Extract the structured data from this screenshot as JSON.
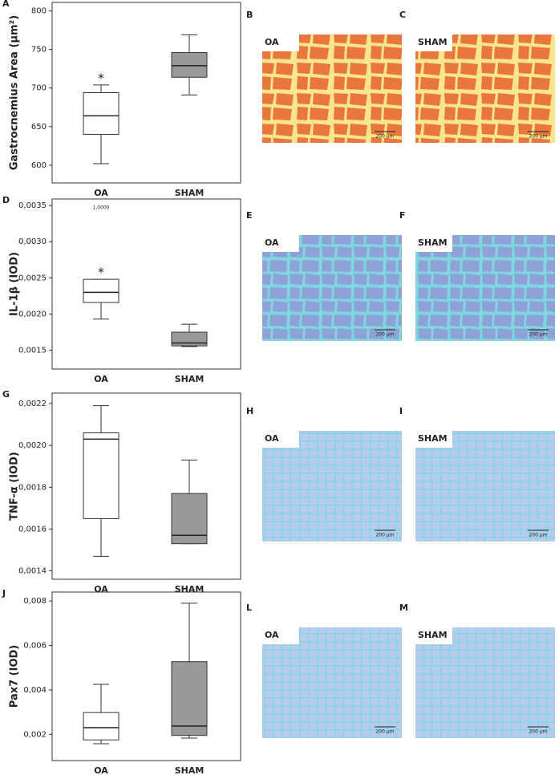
{
  "chart_data": [
    {
      "type": "box",
      "panel": "A",
      "ylabel": "Gastrocnemius Area (µm²)",
      "categories": [
        "OA",
        "SHAM"
      ],
      "boxes": [
        {
          "min": 602,
          "q1": 640,
          "median": 664,
          "q3": 694,
          "max": 704,
          "color": "#ffffff"
        },
        {
          "min": 691,
          "q1": 714,
          "median": 729,
          "q3": 746,
          "max": 769,
          "color": "#999999"
        }
      ],
      "annotations": [
        {
          "text": "*",
          "category": "OA"
        }
      ],
      "ylim": [
        577,
        811
      ],
      "yticks": [
        600,
        650,
        700,
        750,
        800
      ]
    },
    {
      "type": "box",
      "panel": "D",
      "ylabel": "IL-1β  (IOD)",
      "categories": [
        "OA",
        "SHAM"
      ],
      "boxes": [
        {
          "min": 0.00193,
          "q1": 0.00216,
          "median": 0.0023,
          "q3": 0.00248,
          "max": 0.00248,
          "color": "#ffffff"
        },
        {
          "min": 0.00155,
          "q1": 0.00156,
          "median": 0.0016,
          "q3": 0.00175,
          "max": 0.00186,
          "color": "#999999"
        }
      ],
      "annotations": [
        {
          "text": "*",
          "category": "OA"
        },
        {
          "text": "1,0000",
          "category": "OA",
          "value": 0.00347
        }
      ],
      "ylim": [
        0.00124,
        0.00359
      ],
      "yticks": [
        {
          "value": 0.0015,
          "label": "0,0015"
        },
        {
          "value": 0.002,
          "label": "0,0020"
        },
        {
          "value": 0.0025,
          "label": "0,0025"
        },
        {
          "value": 0.003,
          "label": "0,0030"
        },
        {
          "value": 0.0035,
          "label": "0,0035"
        }
      ]
    },
    {
      "type": "box",
      "panel": "G",
      "ylabel": "TNF-α  (IOD)",
      "categories": [
        "OA",
        "SHAM"
      ],
      "boxes": [
        {
          "min": 0.00147,
          "q1": 0.00165,
          "median": 0.00203,
          "q3": 0.00206,
          "max": 0.00219,
          "color": "#ffffff"
        },
        {
          "min": 0.00153,
          "q1": 0.00153,
          "median": 0.00157,
          "q3": 0.00177,
          "max": 0.00193,
          "color": "#999999"
        }
      ],
      "annotations": [],
      "ylim": [
        0.00136,
        0.00225
      ],
      "yticks": [
        {
          "value": 0.0014,
          "label": "0,0014"
        },
        {
          "value": 0.0016,
          "label": "0,0016"
        },
        {
          "value": 0.0018,
          "label": "0,0018"
        },
        {
          "value": 0.002,
          "label": "0,0020"
        },
        {
          "value": 0.0022,
          "label": "0,0022"
        }
      ]
    },
    {
      "type": "box",
      "panel": "J",
      "ylabel": "Pax7  (IOD)",
      "categories": [
        "OA",
        "SHAM"
      ],
      "boxes": [
        {
          "min": 0.00158,
          "q1": 0.00175,
          "median": 0.0023,
          "q3": 0.00298,
          "max": 0.00425,
          "color": "#ffffff"
        },
        {
          "min": 0.00183,
          "q1": 0.00195,
          "median": 0.00237,
          "q3": 0.00527,
          "max": 0.0079,
          "color": "#999999"
        }
      ],
      "annotations": [],
      "ylim": [
        0.00082,
        0.0084
      ],
      "yticks": [
        {
          "value": 0.002,
          "label": "0,002"
        },
        {
          "value": 0.004,
          "label": "0,004"
        },
        {
          "value": 0.006,
          "label": "0,006"
        },
        {
          "value": 0.008,
          "label": "0,008"
        }
      ]
    }
  ],
  "images": [
    {
      "panel": "B",
      "group": "OA",
      "scale": "200 µm"
    },
    {
      "panel": "C",
      "group": "SHAM",
      "scale": "200 µm"
    },
    {
      "panel": "E",
      "group": "OA",
      "scale": "200 µm"
    },
    {
      "panel": "F",
      "group": "SHAM",
      "scale": "200 µm"
    },
    {
      "panel": "H",
      "group": "OA",
      "scale": "200 µm"
    },
    {
      "panel": "I",
      "group": "SHAM",
      "scale": "200 µm"
    },
    {
      "panel": "L",
      "group": "OA",
      "scale": "200 µm"
    },
    {
      "panel": "M",
      "group": "SHAM",
      "scale": "200 µm"
    }
  ]
}
